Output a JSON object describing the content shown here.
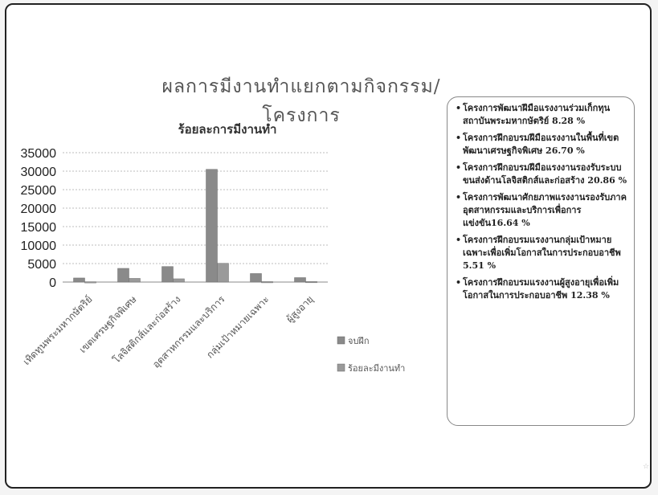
{
  "slide": {
    "title": "ผลการมีงานทำแยกตามกิจกรรม/โครงการ",
    "bullets": [
      "โครงการพัฒนาฝีมือแรงงานร่วมเก็กทุนสถาบันพระมหากษัตริย์ 8.28 %",
      "โครงการฝึกอบรมฝีมือแรงงานในพื้นที่เขตพัฒนาเศรษฐกิจพิเศษ 26.70 %",
      "โครงการฝึกอบรมฝีมือแรงงานรองรับระบบขนส่งด้านโลจิสติกส์และก่อสร้าง 20.86 %",
      "โครงการพัฒนาศักยภาพแรงงานรองรับภาคอุตสาหกรรมและบริการเพื่อการแข่งขัน16.64 %",
      "โครงการฝึกอบรมแรงงานกลุ่มเป้าหมายเฉพาะเพื่อเพิ่มโอกาสในการประกอบอาชีพ 5.51 %",
      "โครงการฝึกอบรมแรงงานผู้สูงอายุเพื่อเพิ่มโอกาสในการประกอบอาชีพ 12.38 %"
    ],
    "mark": "☆"
  },
  "chart_data": {
    "type": "bar",
    "title": "ร้อยละการมีงานทำ",
    "categories": [
      "เทิดทูนพระมหากษัตริย์",
      "เขตเศรษฐกิจพิเศษ",
      "โลจิสติกส์และก่อสร้าง",
      "อุตสาหกรรมและบริการ",
      "กลุ่มเป้าหมายเฉพาะ",
      "ผู้สูงอายุ"
    ],
    "series": [
      {
        "name": "จบฝึก",
        "values": [
          1100,
          3700,
          4200,
          30500,
          2300,
          1200
        ],
        "color": "#8a8a8a"
      },
      {
        "name": "ร้อยละมีงานทำ",
        "values": [
          90,
          990,
          880,
          5070,
          130,
          150
        ],
        "color": "#9a9a9a"
      }
    ],
    "yticks": [
      "0",
      "5000",
      "10000",
      "15000",
      "20000",
      "25000",
      "30000",
      "35000"
    ],
    "ylim": [
      0,
      35000
    ],
    "grid": true,
    "legend": "right"
  }
}
